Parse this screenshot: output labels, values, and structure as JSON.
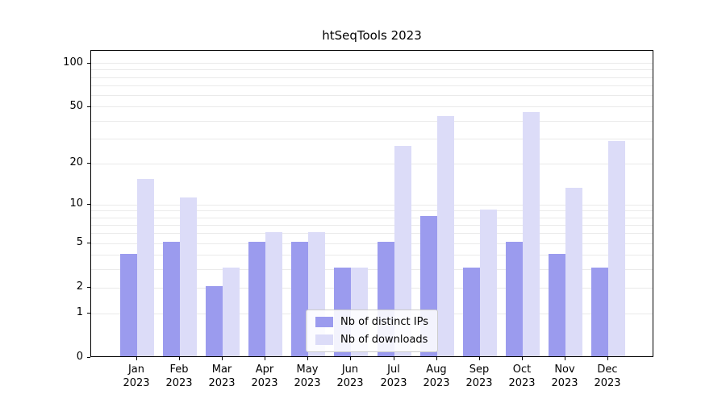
{
  "chart_data": {
    "type": "bar",
    "title": "htSeqTools 2023",
    "categories": [
      "Jan",
      "Feb",
      "Mar",
      "Apr",
      "May",
      "Jun",
      "Jul",
      "Aug",
      "Sep",
      "Oct",
      "Nov",
      "Dec"
    ],
    "year": "2023",
    "series": [
      {
        "name": "Nb of distinct IPs",
        "color": "#9b9bee",
        "values": [
          4,
          5,
          2,
          5,
          5,
          3,
          5,
          8,
          3,
          5,
          4,
          3
        ]
      },
      {
        "name": "Nb of downloads",
        "color": "#dcdcf8",
        "values": [
          15,
          11,
          3,
          6,
          6,
          3,
          26,
          42,
          9,
          45,
          13,
          28
        ]
      }
    ],
    "yscale": "log1p",
    "yticks": [
      0,
      1,
      2,
      5,
      10,
      20,
      50,
      100
    ],
    "ylim": [
      0,
      122
    ],
    "grid_values": [
      1,
      2,
      3,
      4,
      5,
      6,
      7,
      8,
      9,
      10,
      20,
      30,
      40,
      50,
      60,
      70,
      80,
      90,
      100
    ],
    "xlabel": "",
    "ylabel": "",
    "legend_position": "lower center"
  }
}
